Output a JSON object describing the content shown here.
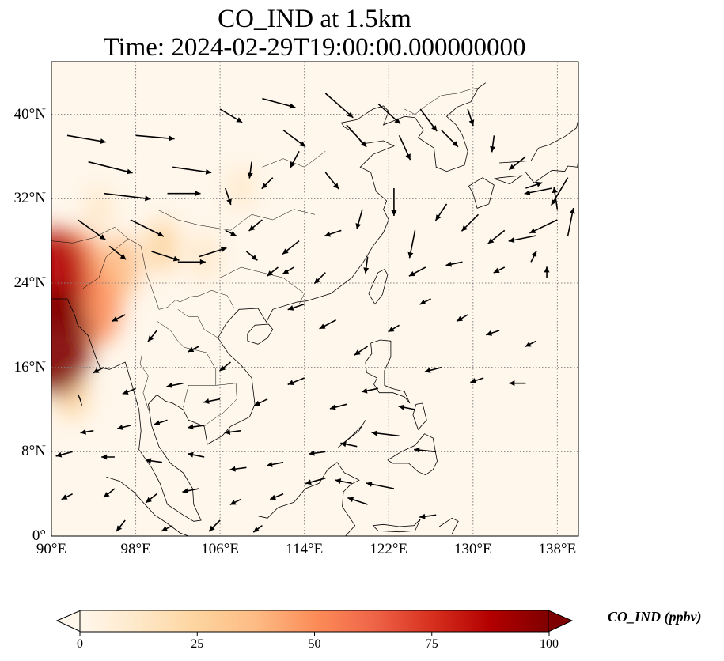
{
  "title": {
    "line1": "CO_IND at 1.5km",
    "line2": "Time: 2024-02-29T19:00:00.000000000"
  },
  "map": {
    "projection": "PlateCarree",
    "extent": {
      "lon": [
        90,
        140
      ],
      "lat": [
        0,
        45
      ]
    },
    "gridlines": "dotted gray",
    "x_ticks": [
      "90°E",
      "98°E",
      "106°E",
      "114°E",
      "122°E",
      "130°E",
      "138°E"
    ],
    "y_ticks": [
      "0°",
      "8°N",
      "16°N",
      "24°N",
      "32°N",
      "40°N"
    ]
  },
  "colorbar": {
    "label": "CO_IND (ppbv)",
    "colormap": "OrRd",
    "range": [
      0,
      100
    ],
    "extend": "both",
    "ticks": [
      "0",
      "25",
      "50",
      "75",
      "100"
    ],
    "colors": [
      "#fff7ec",
      "#fee8c8",
      "#fdd49e",
      "#fdbb84",
      "#fc8d59",
      "#ef6548",
      "#d7301f",
      "#b30000",
      "#7f0000"
    ]
  },
  "plumes": [
    {
      "lon": 90.5,
      "lat": 18.5,
      "value": 100
    },
    {
      "lon": 90.5,
      "lat": 24.5,
      "value": 85
    },
    {
      "lon": 92.5,
      "lat": 25.5,
      "value": 55
    },
    {
      "lon": 94.5,
      "lat": 21.5,
      "value": 45
    },
    {
      "lon": 96.5,
      "lat": 25.5,
      "value": 35
    },
    {
      "lon": 100.5,
      "lat": 27.5,
      "value": 22
    },
    {
      "lon": 104.5,
      "lat": 26.5,
      "value": 15
    },
    {
      "lon": 92.0,
      "lat": 13.5,
      "value": 20
    },
    {
      "lon": 94.5,
      "lat": 31.0,
      "value": 12
    },
    {
      "lon": 108.0,
      "lat": 33.0,
      "value": 8
    }
  ],
  "wind_vectors": [
    [
      91.5,
      38.0,
      3.5,
      -0.6
    ],
    [
      93.5,
      35.5,
      4.0,
      -1.0
    ],
    [
      95.0,
      32.5,
      4.2,
      -0.5
    ],
    [
      92.5,
      30.0,
      2.5,
      -1.8
    ],
    [
      97.5,
      30.0,
      3.0,
      -1.5
    ],
    [
      95.5,
      27.5,
      1.5,
      -1.2
    ],
    [
      99.5,
      27.0,
      2.5,
      -0.8
    ],
    [
      102.0,
      26.0,
      2.5,
      0.0
    ],
    [
      104.0,
      26.5,
      2.5,
      0.8
    ],
    [
      98.0,
      38.0,
      3.5,
      -0.3
    ],
    [
      101.5,
      35.0,
      3.5,
      -0.5
    ],
    [
      101.0,
      32.5,
      3.0,
      0.0
    ],
    [
      106.0,
      40.5,
      2.0,
      -1.2
    ],
    [
      110.0,
      41.5,
      3.0,
      -0.8
    ],
    [
      112.0,
      38.5,
      2.0,
      -1.5
    ],
    [
      116.0,
      42.0,
      2.5,
      -2.2
    ],
    [
      118.0,
      39.0,
      1.8,
      -2.0
    ],
    [
      121.0,
      41.0,
      2.0,
      -1.8
    ],
    [
      123.0,
      38.0,
      1.0,
      -2.2
    ],
    [
      125.0,
      40.5,
      1.5,
      -2.0
    ],
    [
      127.0,
      38.5,
      1.5,
      -1.5
    ],
    [
      129.5,
      40.5,
      0.5,
      -1.5
    ],
    [
      132.0,
      38.0,
      -0.2,
      -1.5
    ],
    [
      135.0,
      36.0,
      -1.5,
      -1.2
    ],
    [
      137.5,
      33.0,
      -2.5,
      -0.5
    ],
    [
      139.0,
      34.0,
      -1.5,
      -2.5
    ],
    [
      138.0,
      30.0,
      -2.5,
      -1.2
    ],
    [
      136.0,
      28.5,
      -2.5,
      -0.5
    ],
    [
      133.0,
      29.0,
      -1.5,
      -1.2
    ],
    [
      130.5,
      30.5,
      -1.5,
      -1.5
    ],
    [
      127.5,
      31.5,
      -1.0,
      -1.5
    ],
    [
      124.5,
      29.0,
      -0.5,
      -2.5
    ],
    [
      122.5,
      33.0,
      0.0,
      -2.5
    ],
    [
      119.5,
      31.0,
      -0.5,
      -1.8
    ],
    [
      116.0,
      34.5,
      1.2,
      -1.5
    ],
    [
      113.5,
      36.5,
      -0.8,
      -1.5
    ],
    [
      111.0,
      34.0,
      -1.0,
      -1.0
    ],
    [
      109.0,
      35.5,
      -0.2,
      -1.5
    ],
    [
      106.5,
      33.0,
      0.5,
      -1.5
    ],
    [
      110.0,
      30.0,
      -1.2,
      -1.0
    ],
    [
      113.5,
      28.0,
      -1.5,
      -1.2
    ],
    [
      117.5,
      29.0,
      -1.5,
      -0.5
    ],
    [
      120.0,
      26.5,
      -0.2,
      -1.5
    ],
    [
      106.5,
      29.0,
      1.0,
      -0.5
    ],
    [
      108.5,
      27.0,
      1.0,
      -0.8
    ],
    [
      111.5,
      25.5,
      -1.0,
      -0.8
    ],
    [
      114.0,
      22.0,
      -1.5,
      -0.5
    ],
    [
      117.0,
      20.5,
      -1.5,
      -0.8
    ],
    [
      120.0,
      18.0,
      -1.2,
      -0.8
    ],
    [
      123.0,
      20.0,
      -1.0,
      -0.6
    ],
    [
      126.0,
      22.5,
      -1.0,
      -0.5
    ],
    [
      129.5,
      21.0,
      -1.0,
      -0.6
    ],
    [
      132.5,
      19.5,
      -1.2,
      -0.4
    ],
    [
      136.0,
      18.5,
      -1.0,
      -0.5
    ],
    [
      127.0,
      16.0,
      -1.5,
      -0.4
    ],
    [
      131.0,
      15.0,
      -1.2,
      -0.4
    ],
    [
      135.0,
      14.5,
      -1.5,
      0.0
    ],
    [
      121.0,
      14.0,
      -1.5,
      -0.3
    ],
    [
      124.5,
      12.0,
      -1.5,
      0.3
    ],
    [
      118.0,
      12.5,
      -1.5,
      -0.4
    ],
    [
      114.0,
      15.0,
      -1.5,
      -0.6
    ],
    [
      110.5,
      13.0,
      -1.2,
      -0.6
    ],
    [
      107.0,
      16.5,
      -1.0,
      -0.8
    ],
    [
      104.0,
      18.0,
      -1.0,
      -0.5
    ],
    [
      100.0,
      19.5,
      -0.8,
      -1.0
    ],
    [
      97.0,
      21.0,
      -1.2,
      -0.6
    ],
    [
      95.0,
      16.0,
      -1.0,
      -0.5
    ],
    [
      98.0,
      14.0,
      -1.2,
      -0.5
    ],
    [
      102.5,
      14.5,
      -1.5,
      -0.3
    ],
    [
      106.0,
      13.0,
      -1.5,
      -0.3
    ],
    [
      108.0,
      10.0,
      -1.5,
      -0.2
    ],
    [
      104.5,
      10.5,
      -1.5,
      -0.2
    ],
    [
      101.0,
      11.0,
      -1.2,
      -0.4
    ],
    [
      97.5,
      10.5,
      -1.2,
      -0.3
    ],
    [
      94.0,
      10.0,
      -1.2,
      -0.2
    ],
    [
      92.0,
      8.0,
      -1.5,
      -0.4
    ],
    [
      96.0,
      7.5,
      -1.2,
      0.0
    ],
    [
      100.5,
      7.0,
      -1.5,
      0.2
    ],
    [
      104.5,
      7.5,
      -1.5,
      0.3
    ],
    [
      108.5,
      6.5,
      -1.5,
      -0.2
    ],
    [
      112.0,
      7.0,
      -1.5,
      -0.3
    ],
    [
      116.0,
      8.0,
      -1.5,
      -0.2
    ],
    [
      119.0,
      8.5,
      -1.5,
      0.3
    ],
    [
      123.0,
      9.5,
      -2.5,
      0.3
    ],
    [
      126.5,
      8.0,
      -2.0,
      0.2
    ],
    [
      118.5,
      5.0,
      -1.5,
      0.3
    ],
    [
      122.5,
      4.5,
      -2.5,
      0.5
    ],
    [
      126.5,
      2.0,
      -1.5,
      -0.2
    ],
    [
      120.0,
      3.0,
      -1.8,
      0.6
    ],
    [
      116.0,
      5.5,
      -1.8,
      -0.5
    ],
    [
      112.0,
      4.0,
      -1.2,
      -0.5
    ],
    [
      108.0,
      3.5,
      -1.0,
      -0.5
    ],
    [
      104.0,
      4.5,
      -1.5,
      -0.3
    ],
    [
      100.0,
      4.0,
      -1.0,
      -0.8
    ],
    [
      96.0,
      4.5,
      -1.0,
      -0.8
    ],
    [
      92.0,
      4.0,
      -1.0,
      -0.5
    ],
    [
      97.0,
      1.5,
      -0.8,
      -1.0
    ],
    [
      101.5,
      1.0,
      -1.0,
      -0.5
    ],
    [
      106.0,
      1.5,
      -1.0,
      -1.0
    ],
    [
      110.0,
      1.0,
      -0.8,
      -0.6
    ],
    [
      113.0,
      25.5,
      -1.0,
      -0.6
    ],
    [
      116.0,
      25.0,
      -1.0,
      -1.0
    ],
    [
      125.5,
      25.5,
      -1.5,
      -0.8
    ],
    [
      129.0,
      26.0,
      -1.5,
      -0.3
    ],
    [
      133.0,
      25.5,
      -1.0,
      -0.5
    ],
    [
      135.5,
      26.0,
      0.5,
      1.0
    ],
    [
      137.0,
      24.5,
      0.0,
      1.0
    ],
    [
      135.0,
      33.0,
      1.5,
      0.5
    ],
    [
      138.0,
      31.0,
      -0.3,
      2.0
    ],
    [
      139.0,
      28.5,
      0.5,
      2.5
    ]
  ]
}
